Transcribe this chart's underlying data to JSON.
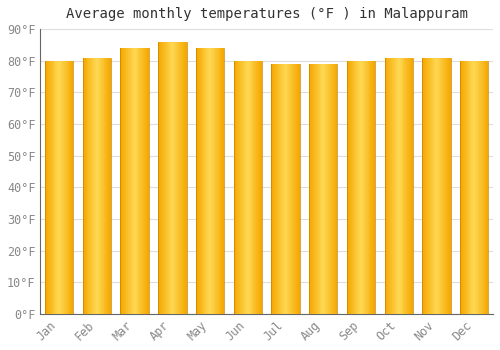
{
  "title": "Average monthly temperatures (°F ) in Malappuram",
  "months": [
    "Jan",
    "Feb",
    "Mar",
    "Apr",
    "May",
    "Jun",
    "Jul",
    "Aug",
    "Sep",
    "Oct",
    "Nov",
    "Dec"
  ],
  "values": [
    80,
    81,
    84,
    86,
    84,
    80,
    79,
    79,
    80,
    81,
    81,
    80
  ],
  "bar_color_left": "#F5A800",
  "bar_color_center": "#FFD966",
  "bar_color_right": "#F5A800",
  "background_color": "#FFFFFF",
  "grid_color": "#DDDDDD",
  "ylim": [
    0,
    90
  ],
  "ytick_interval": 10,
  "title_fontsize": 10,
  "tick_fontsize": 8.5,
  "font_family": "monospace",
  "axis_color": "#888888",
  "spine_color": "#666666"
}
